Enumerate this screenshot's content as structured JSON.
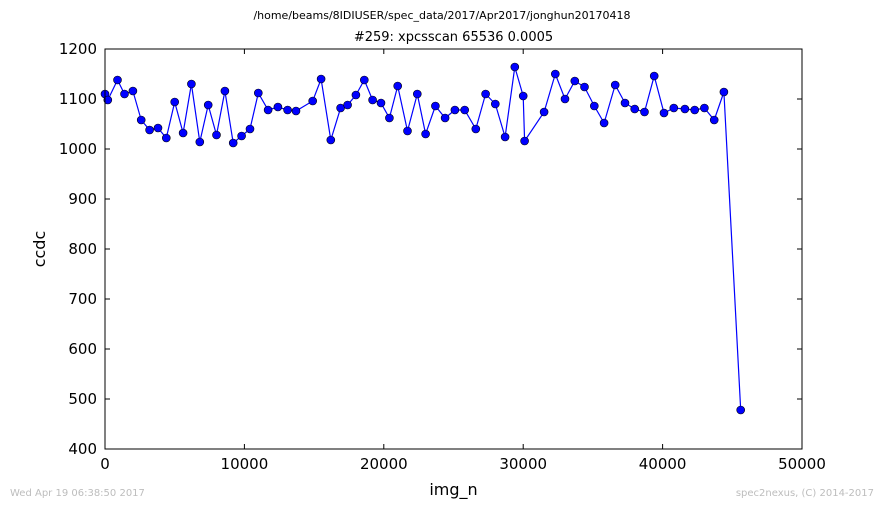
{
  "figure": {
    "suptitle": "/home/beams/8IDIUSER/spec_data/2017/Apr2017/jonghun20170418",
    "footer_left": "Wed Apr 19 06:38:50 2017",
    "footer_right": "spec2nexus, (C) 2014-2017"
  },
  "chart_data": {
    "type": "line",
    "title": "#259: xpcsscan 65536 0.0005",
    "xlabel": "img_n",
    "ylabel": "ccdc",
    "xlim": [
      0,
      50000
    ],
    "ylim": [
      400,
      1200
    ],
    "xticks": [
      0,
      10000,
      20000,
      30000,
      40000,
      50000
    ],
    "yticks": [
      400,
      500,
      600,
      700,
      800,
      900,
      1000,
      1100,
      1200
    ],
    "grid": false,
    "line_color": "#0000ff",
    "marker_color": "#0000ff",
    "marker": "circle",
    "series": [
      {
        "x": [
          0,
          200,
          900,
          1400,
          2000,
          2600,
          3200,
          3800,
          4400,
          5000,
          5600,
          6200,
          6800,
          7400,
          8000,
          8600,
          9200,
          9800,
          10400,
          11000,
          11700,
          12400,
          13100,
          13700,
          14900,
          15500,
          16200,
          16900,
          17400,
          18000,
          18600,
          19200,
          19800,
          20400,
          21000,
          21700,
          22400,
          23000,
          23700,
          24400,
          25100,
          25800,
          26600,
          27300,
          28000,
          28700,
          29400,
          30000,
          30100,
          31500,
          32300,
          33000,
          33700,
          34400,
          35100,
          35800,
          36600,
          37300,
          38000,
          38700,
          39400,
          40100,
          40800,
          41600,
          42300,
          43000,
          43700,
          44400,
          45600
        ],
        "y": [
          1110,
          1098,
          1138,
          1110,
          1116,
          1058,
          1038,
          1042,
          1022,
          1094,
          1032,
          1130,
          1014,
          1088,
          1028,
          1116,
          1012,
          1026,
          1040,
          1112,
          1078,
          1084,
          1078,
          1076,
          1096,
          1140,
          1018,
          1082,
          1088,
          1108,
          1138,
          1098,
          1092,
          1062,
          1126,
          1036,
          1110,
          1030,
          1086,
          1062,
          1078,
          1078,
          1040,
          1110,
          1090,
          1024,
          1164,
          1106,
          1016,
          1074,
          1150,
          1100,
          1136,
          1124,
          1086,
          1052,
          1128,
          1092,
          1080,
          1074,
          1146,
          1072,
          1082,
          1080,
          1078,
          1082,
          1058,
          1114,
          478
        ]
      }
    ]
  }
}
